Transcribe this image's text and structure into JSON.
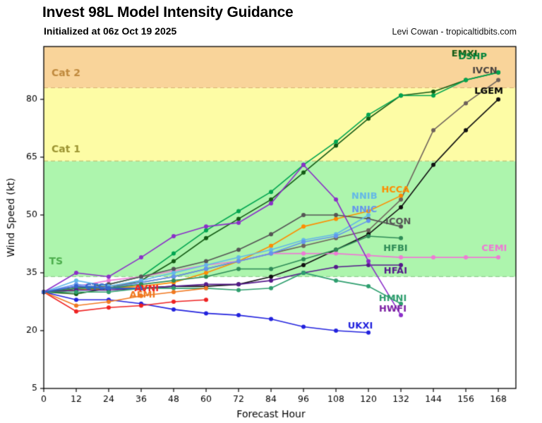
{
  "header": {
    "title": "Invest 98L Model Intensity Guidance",
    "subtitle": "Initialized at 06z Oct 19 2025",
    "credit": "Levi Cowan - tropicaltidbits.com"
  },
  "chart_data": {
    "type": "line",
    "title": "Invest 98L Model Intensity Guidance",
    "subtitle": "Initialized at 06z Oct 19 2025",
    "xlabel": "Forecast Hour",
    "ylabel": "Wind Speed (kt)",
    "xlim": [
      0,
      174.5
    ],
    "ylim": [
      5,
      93.7
    ],
    "xticks": [
      0,
      12,
      24,
      36,
      48,
      60,
      72,
      84,
      96,
      108,
      120,
      132,
      144,
      156,
      168
    ],
    "yticks": [
      5,
      20,
      35,
      50,
      65,
      80
    ],
    "grid": false,
    "legend_position": "inline-labels-at-line-ends",
    "bands": [
      {
        "label": "TS",
        "from": 34,
        "to": 64,
        "color": "#ADF5AD",
        "line_color": "#94CF94",
        "label_color": "#4CAE4C",
        "label_pos": [
          4.5,
          37.8
        ]
      },
      {
        "label": "Cat 1",
        "from": 64,
        "to": 83,
        "color": "#FDFCA5",
        "line_color": "#C4C478",
        "label_color": "#9C9432",
        "label_pos": [
          8.2,
          66.9
        ]
      },
      {
        "label": "Cat 2",
        "from": 83,
        "to": 93.7,
        "color": "#F9D49A",
        "line_color": "#D8B276",
        "label_color": "#C08A3E",
        "label_pos": [
          8.2,
          86.7
        ]
      }
    ],
    "series": [
      {
        "name": "EMXI",
        "color": "#145A14",
        "label_color": "#145A14",
        "label_pos": [
          155.5,
          91.8
        ],
        "hours": [
          0,
          12,
          24,
          36,
          48,
          60,
          72,
          84,
          96,
          108,
          120,
          132,
          144,
          156,
          168
        ],
        "values": [
          30,
          29.5,
          31,
          33,
          38,
          44,
          49,
          54,
          61,
          68,
          75,
          81,
          82,
          85,
          87
        ]
      },
      {
        "name": "DSHP",
        "color": "#00A550",
        "label_color": "#00843B",
        "label_pos": [
          158.5,
          91.0
        ],
        "hours": [
          0,
          12,
          24,
          36,
          48,
          60,
          72,
          84,
          96,
          108,
          120,
          132,
          144,
          156,
          168
        ],
        "values": [
          30,
          31,
          32,
          34,
          40,
          46,
          51,
          56,
          63,
          69,
          76,
          81,
          81,
          85,
          87
        ]
      },
      {
        "name": "IVCN",
        "color": "#6E625C",
        "label_color": "#4A4440",
        "label_pos": [
          163,
          87.4
        ],
        "hours": [
          0,
          12,
          24,
          36,
          48,
          60,
          72,
          84,
          96,
          108,
          120,
          132,
          144,
          156,
          168
        ],
        "values": [
          30,
          31,
          31.5,
          32.5,
          34,
          36,
          38,
          40,
          42,
          44,
          46,
          54,
          72,
          79,
          85
        ]
      },
      {
        "name": "LGEM",
        "color": "#101010",
        "label_color": "#000000",
        "label_pos": [
          164.5,
          82
        ],
        "hours": [
          0,
          12,
          24,
          36,
          48,
          60,
          72,
          84,
          96,
          108,
          120,
          132,
          144,
          156,
          168
        ],
        "values": [
          30,
          30.5,
          31,
          31,
          31.5,
          31.5,
          32,
          34,
          37,
          41,
          45,
          52,
          63,
          72,
          80
        ]
      },
      {
        "name": "CEMI",
        "color": "#EE7AD5",
        "label_color": "#EE7AD5",
        "label_pos": [
          166.5,
          41.3
        ],
        "hours": [
          0,
          12,
          24,
          36,
          48,
          60,
          72,
          84,
          96,
          108,
          120,
          132,
          144,
          156,
          168
        ],
        "values": [
          30,
          31.5,
          33,
          34,
          35.5,
          37,
          38,
          40,
          40,
          40,
          39.5,
          39,
          39,
          39,
          39
        ]
      },
      {
        "name": "HCCA",
        "color": "#FF8C00",
        "label_color": "#FF8C00",
        "label_pos": [
          130,
          56.5
        ],
        "hours": [
          0,
          12,
          24,
          36,
          48,
          60,
          72,
          84,
          96,
          108,
          120,
          132
        ],
        "values": [
          30,
          30.5,
          31,
          31.5,
          32.5,
          35,
          38,
          42,
          47,
          49,
          51,
          55
        ]
      },
      {
        "name": "ICON",
        "color": "#555555",
        "label_color": "#555555",
        "label_pos": [
          131,
          48.3
        ],
        "hours": [
          0,
          12,
          24,
          36,
          48,
          60,
          72,
          84,
          96,
          108,
          120,
          132
        ],
        "values": [
          30,
          31,
          32,
          34,
          36,
          38,
          41,
          45,
          50,
          50,
          49,
          47
        ]
      },
      {
        "name": "NNIB",
        "color": "#63B8E8",
        "label_color": "#63B8E8",
        "label_pos": [
          118.5,
          54.9
        ],
        "hours": [
          0,
          12,
          24,
          36,
          48,
          60,
          72,
          84,
          96,
          108,
          120
        ],
        "values": [
          30,
          33,
          31.5,
          33,
          35,
          37,
          39,
          41,
          43.5,
          45,
          50
        ]
      },
      {
        "name": "NNIC",
        "color": "#6495ED",
        "label_color": "#6495ED",
        "label_pos": [
          118.5,
          51.3
        ],
        "hours": [
          0,
          12,
          24,
          36,
          48,
          60,
          72,
          84,
          96,
          108,
          120
        ],
        "values": [
          30,
          32,
          31,
          32.5,
          34,
          36,
          38,
          40,
          43,
          44.5,
          48.5
        ]
      },
      {
        "name": "HFBI",
        "color": "#2E8B57",
        "label_color": "#2E8B57",
        "label_pos": [
          130,
          41.3
        ],
        "hours": [
          0,
          12,
          24,
          36,
          48,
          60,
          72,
          84,
          96,
          108,
          120,
          132
        ],
        "values": [
          30,
          31,
          31,
          32,
          33,
          34,
          36,
          36,
          38.5,
          41,
          44.5,
          44
        ]
      },
      {
        "name": "HFAI",
        "color": "#551A8B",
        "label_color": "#551A8B",
        "label_pos": [
          130,
          35.4
        ],
        "hours": [
          0,
          12,
          24,
          36,
          48,
          60,
          72,
          84,
          96,
          108,
          120,
          132
        ],
        "values": [
          30,
          30.5,
          30.5,
          31,
          31.5,
          32,
          32,
          33,
          35,
          36.5,
          37,
          37
        ]
      },
      {
        "name": "HMNI",
        "color": "#2E9E6E",
        "label_color": "#2E9E6E",
        "label_pos": [
          129,
          28.3
        ],
        "hours": [
          0,
          12,
          24,
          36,
          48,
          60,
          72,
          84,
          96,
          108,
          120,
          132
        ],
        "values": [
          30,
          30,
          30,
          31,
          31,
          31,
          30.5,
          31,
          35,
          33,
          31.5,
          27
        ]
      },
      {
        "name": "HWFI",
        "color": "#8B2FC9",
        "label_color": "#7B1FA2",
        "label_pos": [
          129,
          25.6
        ],
        "hours": [
          0,
          12,
          24,
          36,
          48,
          60,
          72,
          84,
          96,
          108,
          120,
          132
        ],
        "values": [
          30,
          35,
          34,
          39,
          44.5,
          47,
          48,
          53,
          63,
          54,
          38,
          24
        ]
      },
      {
        "name": "UKXI",
        "color": "#2222DD",
        "label_color": "#2222DD",
        "label_pos": [
          117,
          21.2
        ],
        "hours": [
          0,
          12,
          24,
          36,
          48,
          60,
          72,
          84,
          96,
          108,
          120
        ],
        "values": [
          30,
          28,
          28,
          27,
          25.5,
          24.5,
          24,
          23,
          21,
          20,
          19.5
        ]
      },
      {
        "name": "AVNI",
        "color": "#EE2222",
        "label_color": "#EE2222",
        "label_pos": [
          38,
          30.9
        ],
        "hours": [
          0,
          12,
          24,
          36,
          48,
          60
        ],
        "values": [
          30,
          25,
          26,
          26.5,
          27.5,
          28
        ]
      },
      {
        "name": "AEMI",
        "color": "#F07820",
        "label_color": "#F07820",
        "label_pos": [
          36.5,
          29.2
        ],
        "hours": [
          0,
          12,
          24,
          36,
          48,
          60
        ],
        "values": [
          30,
          26.5,
          27.5,
          29,
          30,
          31
        ]
      },
      {
        "name": "CTCI",
        "color": "#3366CC",
        "label_color": "#3366CC",
        "label_pos": [
          19.5,
          31.3
        ],
        "hours": [
          0,
          12,
          24,
          36
        ],
        "values": [
          30,
          31.5,
          31,
          31
        ]
      }
    ]
  }
}
